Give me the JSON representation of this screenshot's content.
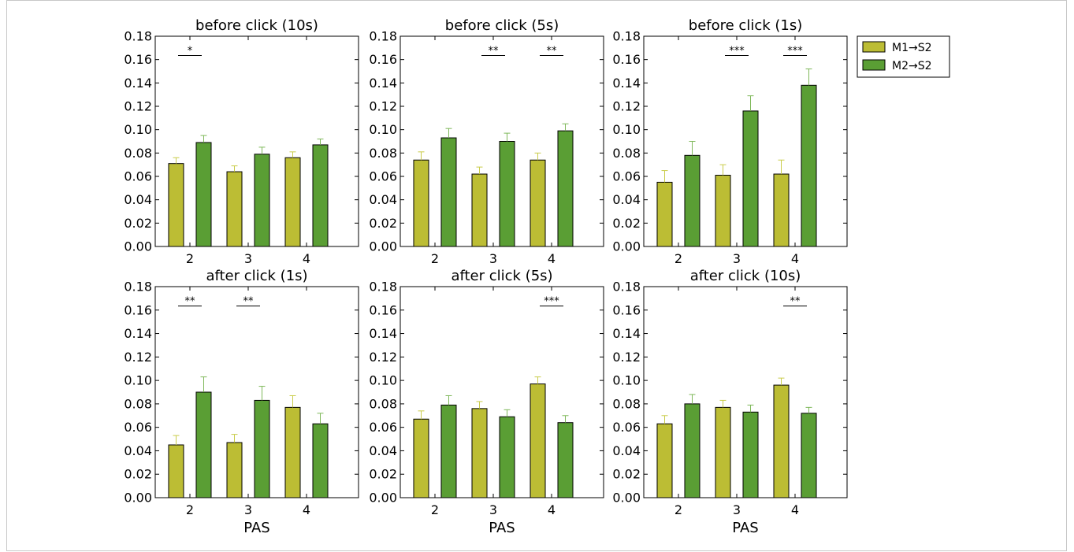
{
  "chart_data": [
    {
      "type": "bar",
      "title": "before click (10s)",
      "categories": [
        "2",
        "3",
        "4"
      ],
      "series": [
        {
          "name": "M1→S2",
          "values": [
            0.071,
            0.064,
            0.076
          ],
          "errors": [
            0.005,
            0.005,
            0.005
          ]
        },
        {
          "name": "M2→S2",
          "values": [
            0.089,
            0.079,
            0.087
          ],
          "errors": [
            0.006,
            0.006,
            0.005
          ]
        }
      ],
      "significance": [
        {
          "category": "2",
          "label": "*"
        }
      ],
      "xlabel": "",
      "ylim": [
        0,
        0.18
      ],
      "yticks": [
        "0.00",
        "0.02",
        "0.04",
        "0.06",
        "0.08",
        "0.10",
        "0.12",
        "0.14",
        "0.16",
        "0.18"
      ]
    },
    {
      "type": "bar",
      "title": "before click (5s)",
      "categories": [
        "2",
        "3",
        "4"
      ],
      "series": [
        {
          "name": "M1→S2",
          "values": [
            0.074,
            0.062,
            0.074
          ],
          "errors": [
            0.007,
            0.006,
            0.006
          ]
        },
        {
          "name": "M2→S2",
          "values": [
            0.093,
            0.09,
            0.099
          ],
          "errors": [
            0.008,
            0.007,
            0.006
          ]
        }
      ],
      "significance": [
        {
          "category": "3",
          "label": "**"
        },
        {
          "category": "4",
          "label": "**"
        }
      ],
      "xlabel": "",
      "ylim": [
        0,
        0.18
      ],
      "yticks": [
        "0.00",
        "0.02",
        "0.04",
        "0.06",
        "0.08",
        "0.10",
        "0.12",
        "0.14",
        "0.16",
        "0.18"
      ]
    },
    {
      "type": "bar",
      "title": "before click (1s)",
      "categories": [
        "2",
        "3",
        "4"
      ],
      "series": [
        {
          "name": "M1→S2",
          "values": [
            0.055,
            0.061,
            0.062
          ],
          "errors": [
            0.01,
            0.009,
            0.012
          ]
        },
        {
          "name": "M2→S2",
          "values": [
            0.078,
            0.116,
            0.138
          ],
          "errors": [
            0.012,
            0.013,
            0.014
          ]
        }
      ],
      "significance": [
        {
          "category": "3",
          "label": "***"
        },
        {
          "category": "4",
          "label": "***"
        }
      ],
      "xlabel": "",
      "ylim": [
        0,
        0.18
      ],
      "yticks": [
        "0.00",
        "0.02",
        "0.04",
        "0.06",
        "0.08",
        "0.10",
        "0.12",
        "0.14",
        "0.16",
        "0.18"
      ]
    },
    {
      "type": "bar",
      "title": "after click (1s)",
      "categories": [
        "2",
        "3",
        "4"
      ],
      "series": [
        {
          "name": "M1→S2",
          "values": [
            0.045,
            0.047,
            0.077
          ],
          "errors": [
            0.008,
            0.007,
            0.01
          ]
        },
        {
          "name": "M2→S2",
          "values": [
            0.09,
            0.083,
            0.063
          ],
          "errors": [
            0.013,
            0.012,
            0.009
          ]
        }
      ],
      "significance": [
        {
          "category": "2",
          "label": "**"
        },
        {
          "category": "3",
          "label": "**"
        }
      ],
      "xlabel": "PAS",
      "ylim": [
        0,
        0.18
      ],
      "yticks": [
        "0.00",
        "0.02",
        "0.04",
        "0.06",
        "0.08",
        "0.10",
        "0.12",
        "0.14",
        "0.16",
        "0.18"
      ]
    },
    {
      "type": "bar",
      "title": "after click (5s)",
      "categories": [
        "2",
        "3",
        "4"
      ],
      "series": [
        {
          "name": "M1→S2",
          "values": [
            0.067,
            0.076,
            0.097
          ],
          "errors": [
            0.007,
            0.006,
            0.006
          ]
        },
        {
          "name": "M2→S2",
          "values": [
            0.079,
            0.069,
            0.064
          ],
          "errors": [
            0.008,
            0.006,
            0.006
          ]
        }
      ],
      "significance": [
        {
          "category": "4",
          "label": "***"
        }
      ],
      "xlabel": "PAS",
      "ylim": [
        0,
        0.18
      ],
      "yticks": [
        "0.00",
        "0.02",
        "0.04",
        "0.06",
        "0.08",
        "0.10",
        "0.12",
        "0.14",
        "0.16",
        "0.18"
      ]
    },
    {
      "type": "bar",
      "title": "after click (10s)",
      "categories": [
        "2",
        "3",
        "4"
      ],
      "series": [
        {
          "name": "M1→S2",
          "values": [
            0.063,
            0.077,
            0.096
          ],
          "errors": [
            0.007,
            0.006,
            0.006
          ]
        },
        {
          "name": "M2→S2",
          "values": [
            0.08,
            0.073,
            0.072
          ],
          "errors": [
            0.008,
            0.006,
            0.005
          ]
        }
      ],
      "significance": [
        {
          "category": "4",
          "label": "**"
        }
      ],
      "xlabel": "PAS",
      "ylim": [
        0,
        0.18
      ],
      "yticks": [
        "0.00",
        "0.02",
        "0.04",
        "0.06",
        "0.08",
        "0.10",
        "0.12",
        "0.14",
        "0.16",
        "0.18"
      ]
    }
  ],
  "legend": {
    "position": "top-right",
    "items": [
      {
        "label": "M1→S2",
        "color": "#bcbd34"
      },
      {
        "label": "M2→S2",
        "color": "#5a9e34"
      }
    ]
  },
  "colors": {
    "m1_fill": "#bcbd34",
    "m2_fill": "#5a9e34",
    "m1_error": "#c9cc4a",
    "m2_error": "#7fb85a"
  }
}
